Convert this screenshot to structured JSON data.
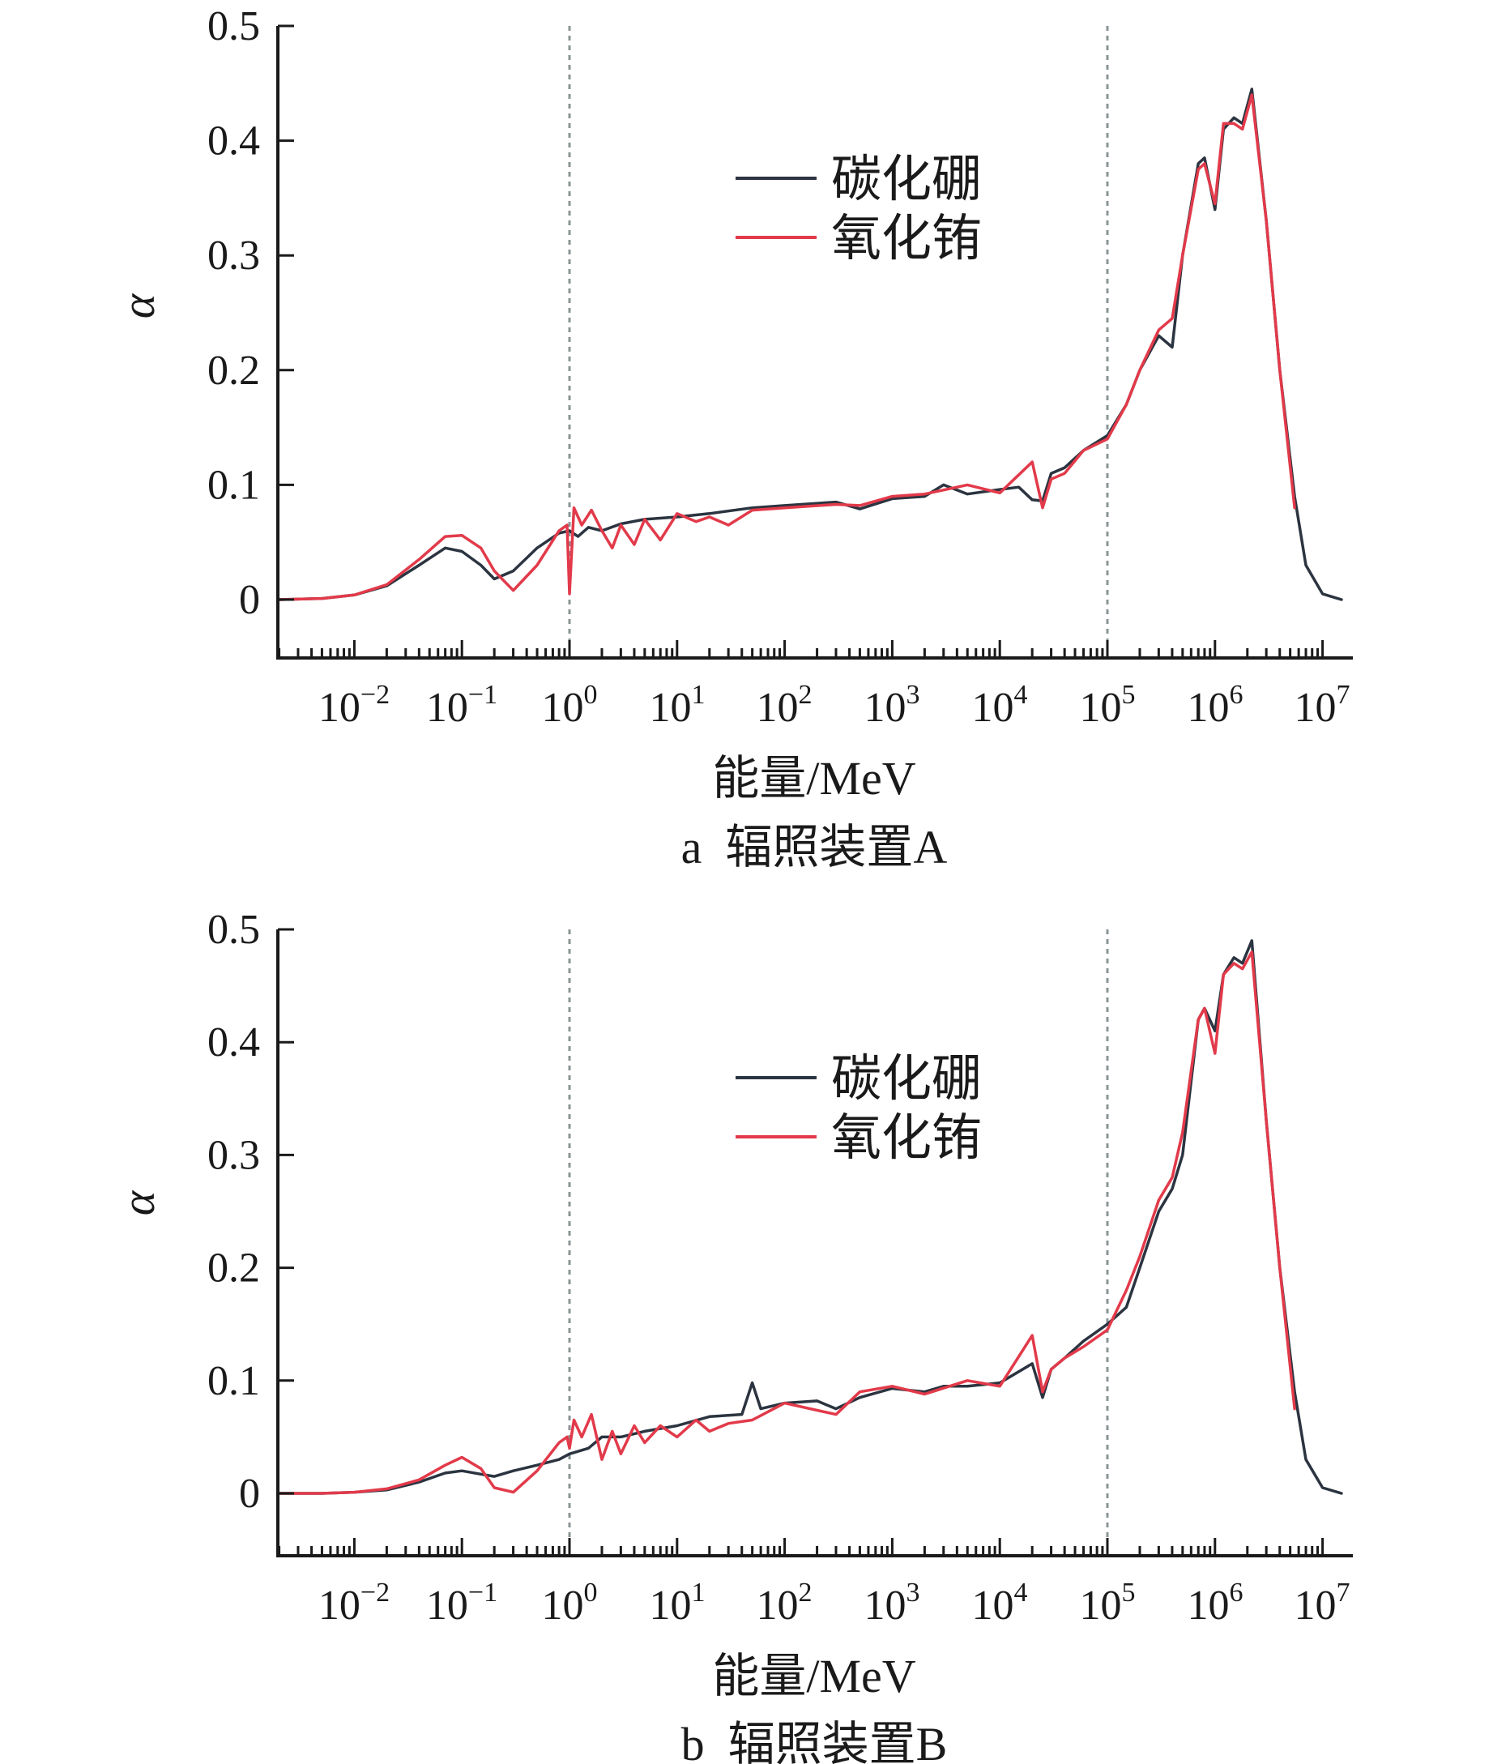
{
  "chart_data": [
    {
      "type": "line",
      "caption": "a  辐照装置A",
      "xlabel": "能量/MeV",
      "ylabel": "α",
      "x_scale": "log",
      "x_range_MeV": [
        0.002,
        15000000
      ],
      "ylim": [
        -0.05,
        0.5
      ],
      "y_ticks": [
        "0",
        "0.1",
        "0.2",
        "0.3",
        "0.4",
        "0.5"
      ],
      "x_tick_labels": [
        {
          "base": "10",
          "exp": "−2",
          "value": 0.01
        },
        {
          "base": "10",
          "exp": "−1",
          "value": 0.1
        },
        {
          "base": "10",
          "exp": "0",
          "value": 1
        },
        {
          "base": "10",
          "exp": "1",
          "value": 10
        },
        {
          "base": "10",
          "exp": "2",
          "value": 100
        },
        {
          "base": "10",
          "exp": "3",
          "value": 1000
        },
        {
          "base": "10",
          "exp": "4",
          "value": 10000
        },
        {
          "base": "10",
          "exp": "5",
          "value": 100000
        },
        {
          "base": "10",
          "exp": "6",
          "value": 1000000
        },
        {
          "base": "10",
          "exp": "7",
          "value": 10000000
        }
      ],
      "reference_lines_MeV": [
        1,
        100000
      ],
      "legend_position": "upper-center",
      "series": [
        {
          "name": "碳化硼",
          "color": "#2b3440",
          "x": [
            0.002,
            0.005,
            0.01,
            0.02,
            0.04,
            0.07,
            0.1,
            0.15,
            0.2,
            0.3,
            0.5,
            0.8,
            1,
            1.2,
            1.5,
            2,
            3,
            5,
            10,
            20,
            50,
            100,
            300,
            500,
            1000,
            2000,
            3000,
            5000,
            10000,
            15000,
            20000,
            25000,
            30000,
            40000,
            60000,
            100000,
            150000,
            200000,
            300000,
            400000,
            500000,
            700000,
            800000,
            1000000,
            1200000,
            1500000,
            1800000,
            2200000,
            3000000,
            4000000,
            5500000,
            7000000,
            10000000,
            15000000
          ],
          "y": [
            0,
            0.001,
            0.004,
            0.012,
            0.03,
            0.045,
            0.042,
            0.03,
            0.018,
            0.025,
            0.045,
            0.058,
            0.06,
            0.055,
            0.063,
            0.06,
            0.066,
            0.07,
            0.072,
            0.075,
            0.08,
            0.082,
            0.085,
            0.079,
            0.088,
            0.09,
            0.1,
            0.092,
            0.096,
            0.098,
            0.087,
            0.086,
            0.11,
            0.115,
            0.13,
            0.143,
            0.17,
            0.2,
            0.23,
            0.22,
            0.3,
            0.38,
            0.385,
            0.34,
            0.41,
            0.42,
            0.415,
            0.445,
            0.33,
            0.2,
            0.09,
            0.03,
            0.005,
            0
          ]
        },
        {
          "name": "氧化铕",
          "color": "#e23a4a",
          "x": [
            0.002,
            0.005,
            0.01,
            0.02,
            0.04,
            0.07,
            0.1,
            0.15,
            0.2,
            0.3,
            0.5,
            0.8,
            0.95,
            1,
            1.1,
            1.3,
            1.6,
            2,
            2.5,
            3,
            4,
            5,
            7,
            10,
            15,
            20,
            30,
            50,
            100,
            300,
            500,
            1000,
            2000,
            5000,
            10000,
            20000,
            25000,
            30000,
            40000,
            60000,
            100000,
            150000,
            200000,
            300000,
            400000,
            500000,
            700000,
            800000,
            1000000,
            1200000,
            1500000,
            1800000,
            2200000,
            3000000,
            4000000,
            5500000
          ],
          "y": [
            0,
            0.001,
            0.004,
            0.013,
            0.035,
            0.055,
            0.056,
            0.045,
            0.025,
            0.008,
            0.03,
            0.06,
            0.065,
            0.005,
            0.08,
            0.065,
            0.078,
            0.06,
            0.045,
            0.065,
            0.048,
            0.07,
            0.052,
            0.075,
            0.068,
            0.072,
            0.065,
            0.078,
            0.08,
            0.083,
            0.082,
            0.09,
            0.092,
            0.1,
            0.093,
            0.12,
            0.08,
            0.105,
            0.11,
            0.13,
            0.14,
            0.17,
            0.2,
            0.235,
            0.245,
            0.3,
            0.375,
            0.38,
            0.345,
            0.415,
            0.415,
            0.41,
            0.44,
            0.33,
            0.2,
            0.08
          ]
        }
      ]
    },
    {
      "type": "line",
      "caption": "b  辐照装置B",
      "xlabel": "能量/MeV",
      "ylabel": "α",
      "x_scale": "log",
      "x_range_MeV": [
        0.002,
        15000000
      ],
      "ylim": [
        -0.05,
        0.5
      ],
      "y_ticks": [
        "0",
        "0.1",
        "0.2",
        "0.3",
        "0.4",
        "0.5"
      ],
      "x_tick_labels": [
        {
          "base": "10",
          "exp": "−2",
          "value": 0.01
        },
        {
          "base": "10",
          "exp": "−1",
          "value": 0.1
        },
        {
          "base": "10",
          "exp": "0",
          "value": 1
        },
        {
          "base": "10",
          "exp": "1",
          "value": 10
        },
        {
          "base": "10",
          "exp": "2",
          "value": 100
        },
        {
          "base": "10",
          "exp": "3",
          "value": 1000
        },
        {
          "base": "10",
          "exp": "4",
          "value": 10000
        },
        {
          "base": "10",
          "exp": "5",
          "value": 100000
        },
        {
          "base": "10",
          "exp": "6",
          "value": 1000000
        },
        {
          "base": "10",
          "exp": "7",
          "value": 10000000
        }
      ],
      "reference_lines_MeV": [
        1,
        100000
      ],
      "legend_position": "upper-center",
      "series": [
        {
          "name": "碳化硼",
          "color": "#2b3440",
          "x": [
            0.002,
            0.005,
            0.01,
            0.02,
            0.04,
            0.07,
            0.1,
            0.15,
            0.2,
            0.3,
            0.5,
            0.8,
            1,
            1.5,
            2,
            3,
            5,
            10,
            20,
            40,
            50,
            60,
            100,
            200,
            300,
            500,
            1000,
            2000,
            3000,
            5000,
            10000,
            20000,
            25000,
            30000,
            40000,
            60000,
            100000,
            150000,
            200000,
            300000,
            400000,
            500000,
            700000,
            800000,
            1000000,
            1200000,
            1500000,
            1800000,
            2200000,
            3000000,
            4000000,
            5500000,
            7000000,
            10000000,
            15000000
          ],
          "y": [
            0,
            0,
            0.001,
            0.003,
            0.01,
            0.018,
            0.02,
            0.017,
            0.015,
            0.02,
            0.025,
            0.03,
            0.035,
            0.04,
            0.05,
            0.05,
            0.055,
            0.06,
            0.068,
            0.07,
            0.098,
            0.075,
            0.08,
            0.082,
            0.075,
            0.085,
            0.093,
            0.09,
            0.095,
            0.095,
            0.098,
            0.115,
            0.085,
            0.11,
            0.12,
            0.135,
            0.15,
            0.165,
            0.2,
            0.25,
            0.27,
            0.3,
            0.42,
            0.43,
            0.41,
            0.46,
            0.475,
            0.47,
            0.49,
            0.33,
            0.2,
            0.09,
            0.03,
            0.005,
            0
          ]
        },
        {
          "name": "氧化铕",
          "color": "#e23a4a",
          "x": [
            0.002,
            0.005,
            0.01,
            0.02,
            0.04,
            0.07,
            0.1,
            0.15,
            0.2,
            0.3,
            0.5,
            0.8,
            0.95,
            1,
            1.1,
            1.3,
            1.6,
            2,
            2.5,
            3,
            4,
            5,
            7,
            10,
            15,
            20,
            30,
            50,
            100,
            300,
            500,
            1000,
            2000,
            5000,
            10000,
            20000,
            25000,
            30000,
            40000,
            60000,
            100000,
            150000,
            200000,
            300000,
            400000,
            500000,
            700000,
            800000,
            1000000,
            1200000,
            1500000,
            1800000,
            2200000,
            3000000,
            4000000,
            5500000
          ],
          "y": [
            0,
            0,
            0.001,
            0.004,
            0.012,
            0.025,
            0.032,
            0.022,
            0.005,
            0.001,
            0.02,
            0.045,
            0.05,
            0.04,
            0.065,
            0.05,
            0.07,
            0.03,
            0.055,
            0.035,
            0.06,
            0.045,
            0.06,
            0.05,
            0.065,
            0.055,
            0.062,
            0.065,
            0.08,
            0.07,
            0.09,
            0.095,
            0.088,
            0.1,
            0.095,
            0.14,
            0.09,
            0.11,
            0.12,
            0.13,
            0.145,
            0.18,
            0.21,
            0.26,
            0.28,
            0.32,
            0.42,
            0.43,
            0.39,
            0.46,
            0.47,
            0.465,
            0.48,
            0.33,
            0.2,
            0.075
          ]
        }
      ]
    }
  ]
}
